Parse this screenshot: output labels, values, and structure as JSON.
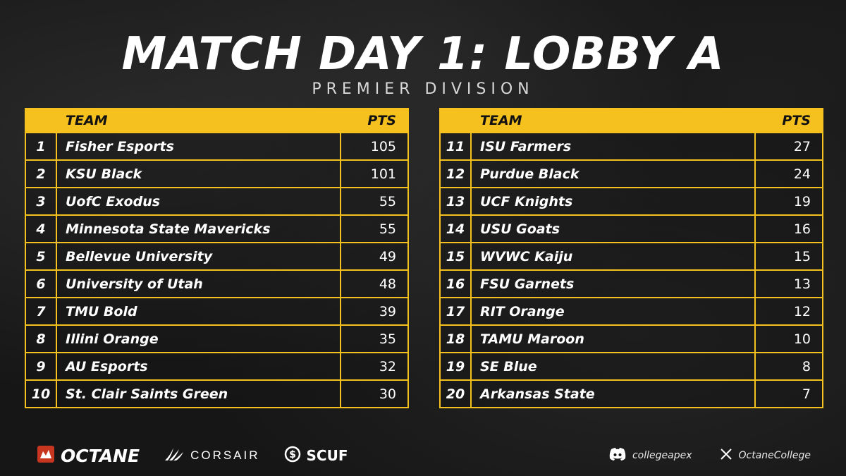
{
  "header": {
    "title": "MATCH DAY 1: LOBBY A",
    "subtitle": "PREMIER DIVISION"
  },
  "table_left": {
    "col_team": "TEAM",
    "col_pts": "PTS",
    "rows": [
      {
        "rank": "1",
        "team": "Fisher Esports",
        "pts": "105"
      },
      {
        "rank": "2",
        "team": "KSU Black",
        "pts": "101"
      },
      {
        "rank": "3",
        "team": "UofC Exodus",
        "pts": "55"
      },
      {
        "rank": "4",
        "team": "Minnesota State Mavericks",
        "pts": "55"
      },
      {
        "rank": "5",
        "team": "Bellevue University",
        "pts": "49"
      },
      {
        "rank": "6",
        "team": "University of Utah",
        "pts": "48"
      },
      {
        "rank": "7",
        "team": "TMU Bold",
        "pts": "39"
      },
      {
        "rank": "8",
        "team": "Illini Orange",
        "pts": "35"
      },
      {
        "rank": "9",
        "team": "AU Esports",
        "pts": "32"
      },
      {
        "rank": "10",
        "team": "St. Clair Saints Green",
        "pts": "30"
      }
    ]
  },
  "table_right": {
    "col_team": "TEAM",
    "col_pts": "PTS",
    "rows": [
      {
        "rank": "11",
        "team": "ISU Farmers",
        "pts": "27"
      },
      {
        "rank": "12",
        "team": "Purdue Black",
        "pts": "24"
      },
      {
        "rank": "13",
        "team": "UCF Knights",
        "pts": "19"
      },
      {
        "rank": "14",
        "team": "USU Goats",
        "pts": "16"
      },
      {
        "rank": "15",
        "team": "WVWC Kaiju",
        "pts": "15"
      },
      {
        "rank": "16",
        "team": "FSU Garnets",
        "pts": "13"
      },
      {
        "rank": "17",
        "team": "RIT Orange",
        "pts": "12"
      },
      {
        "rank": "18",
        "team": "TAMU Maroon",
        "pts": "10"
      },
      {
        "rank": "19",
        "team": "SE Blue",
        "pts": "8"
      },
      {
        "rank": "20",
        "team": "Arkansas State",
        "pts": "7"
      }
    ]
  },
  "footer": {
    "sponsors": {
      "octane": "OCTANE",
      "corsair": "CORSAIR",
      "scuf": "SCUF"
    },
    "socials": {
      "discord": "collegeapex",
      "x": "OctaneCollege"
    }
  },
  "colors": {
    "accent": "#f5c11e",
    "background": "#161616",
    "octane_red": "#c8361f"
  },
  "icons": {
    "octane": "octane-logo-icon",
    "corsair": "corsair-sails-icon",
    "scuf": "scuf-dollar-icon",
    "discord": "discord-icon",
    "x": "x-logo-icon"
  }
}
